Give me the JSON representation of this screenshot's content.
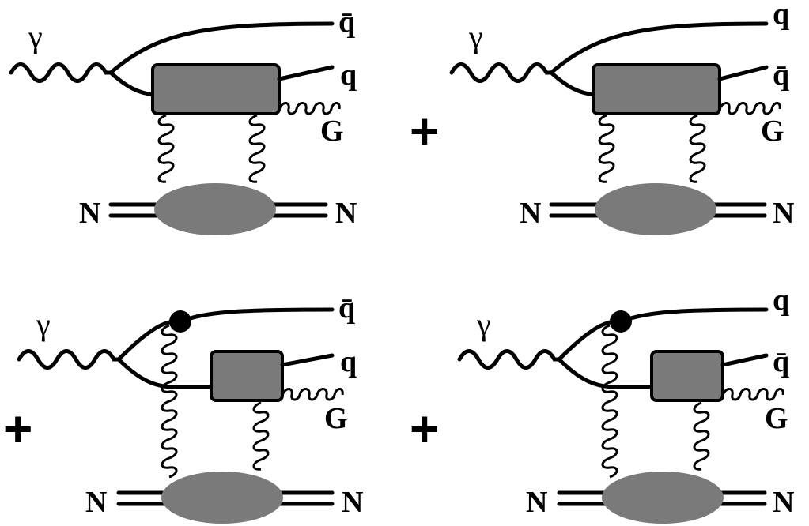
{
  "diagrams": [
    {
      "photon": "γ",
      "top_quark": "q̄",
      "mid_quark": "q",
      "gluon": "G",
      "nucleon_in": "N",
      "nucleon_out": "N"
    },
    {
      "photon": "γ",
      "top_quark": "q",
      "mid_quark": "q̄",
      "gluon": "G",
      "nucleon_in": "N",
      "nucleon_out": "N"
    },
    {
      "photon": "γ",
      "top_quark": "q̄",
      "mid_quark": "q",
      "gluon": "G",
      "nucleon_in": "N",
      "nucleon_out": "N"
    },
    {
      "photon": "γ",
      "top_quark": "q",
      "mid_quark": "q̄",
      "gluon": "G",
      "nucleon_in": "N",
      "nucleon_out": "N"
    }
  ],
  "plus_signs": [
    "+",
    "+",
    "+"
  ]
}
